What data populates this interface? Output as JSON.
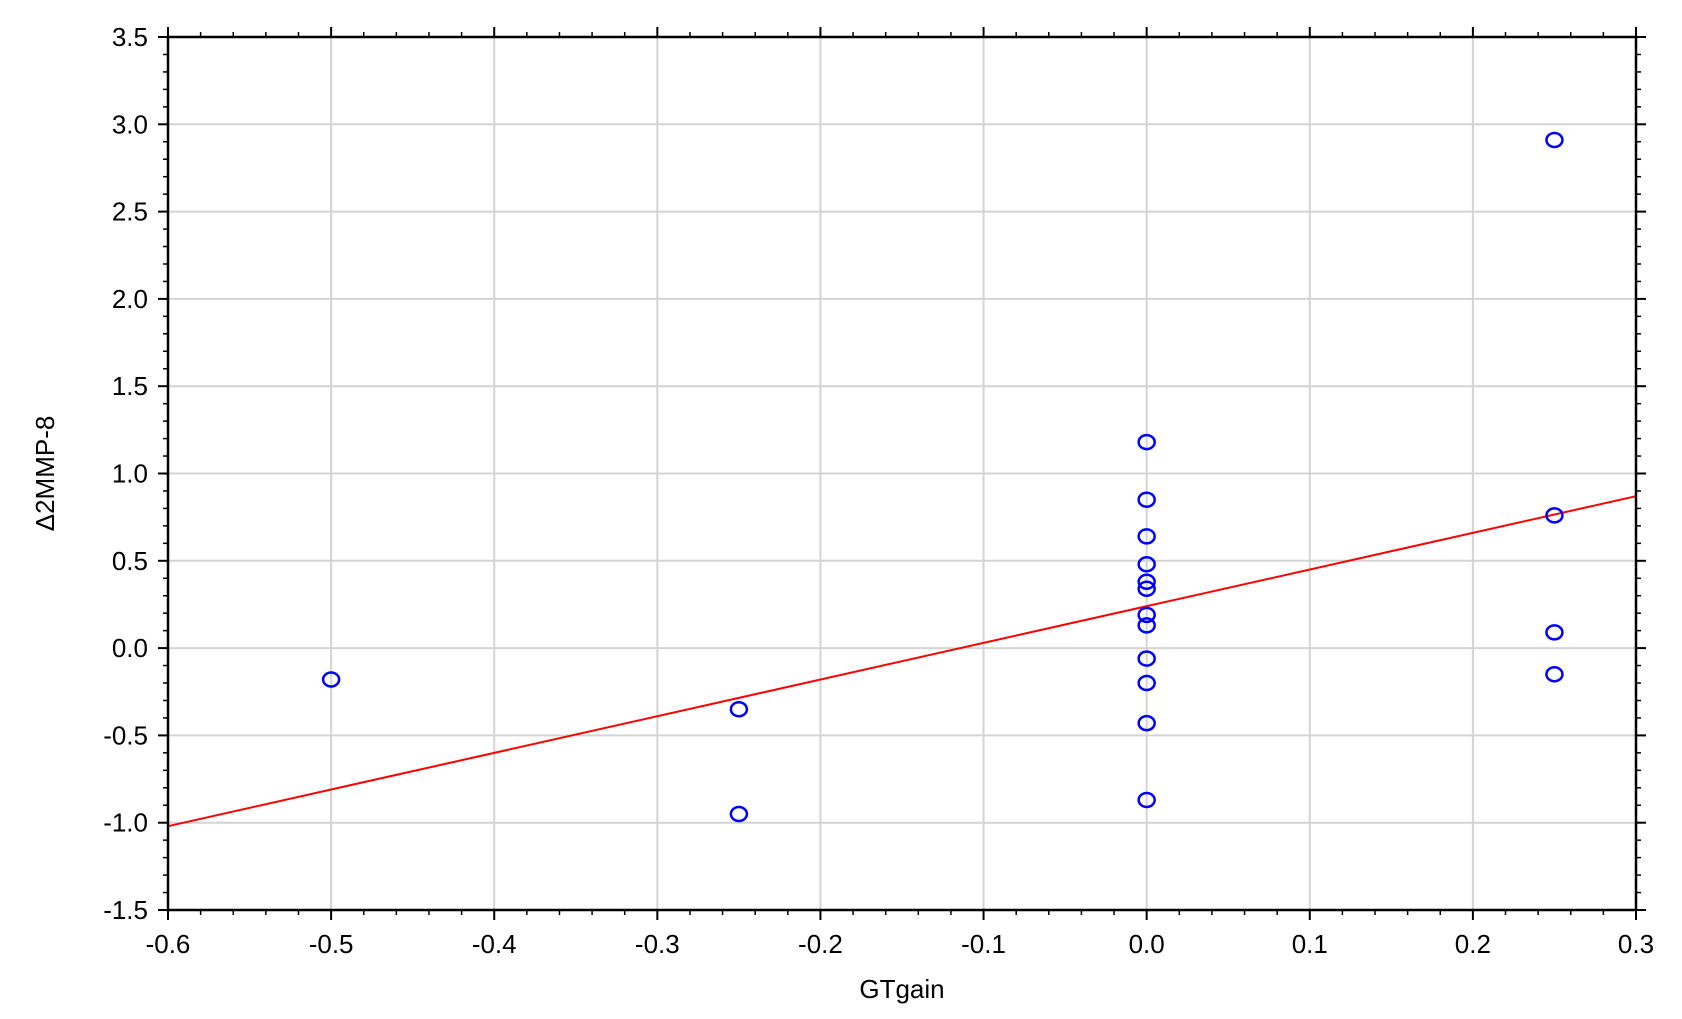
{
  "chart_data": {
    "type": "scatter",
    "title": "",
    "xlabel": "GTgain",
    "ylabel": "Δ2MMP-8",
    "xlim": [
      -0.6,
      0.3
    ],
    "ylim": [
      -1.5,
      3.5
    ],
    "x_ticks": [
      -0.6,
      -0.5,
      -0.4,
      -0.3,
      -0.2,
      -0.1,
      0.0,
      0.1,
      0.2,
      0.3
    ],
    "x_tick_labels": [
      "-0.6",
      "-0.5",
      "-0.4",
      "-0.3",
      "-0.2",
      "-0.1",
      "0.0",
      "0.1",
      "0.2",
      "0.3"
    ],
    "y_ticks": [
      -1.5,
      -1.0,
      -0.5,
      0.0,
      0.5,
      1.0,
      1.5,
      2.0,
      2.5,
      3.0,
      3.5
    ],
    "y_tick_labels": [
      "-1.5",
      "-1.0",
      "-0.5",
      "0.0",
      "0.5",
      "1.0",
      "1.5",
      "2.0",
      "2.5",
      "3.0",
      "3.5"
    ],
    "grid": true,
    "colors": {
      "points": "#0000ff",
      "fit_line": "#ff0000",
      "grid": "#d4d4d4",
      "axes": "#000000"
    },
    "points": [
      {
        "x": -0.5,
        "y": -0.18
      },
      {
        "x": -0.25,
        "y": -0.35
      },
      {
        "x": -0.25,
        "y": -0.95
      },
      {
        "x": 0.0,
        "y": 1.18
      },
      {
        "x": 0.0,
        "y": 0.85
      },
      {
        "x": 0.0,
        "y": 0.64
      },
      {
        "x": 0.0,
        "y": 0.48
      },
      {
        "x": 0.0,
        "y": 0.38
      },
      {
        "x": 0.0,
        "y": 0.34
      },
      {
        "x": 0.0,
        "y": 0.19
      },
      {
        "x": 0.0,
        "y": 0.13
      },
      {
        "x": 0.0,
        "y": -0.06
      },
      {
        "x": 0.0,
        "y": -0.2
      },
      {
        "x": 0.0,
        "y": -0.43
      },
      {
        "x": 0.0,
        "y": -0.87
      },
      {
        "x": 0.25,
        "y": 2.91
      },
      {
        "x": 0.25,
        "y": 0.76
      },
      {
        "x": 0.25,
        "y": 0.09
      },
      {
        "x": 0.25,
        "y": -0.15
      }
    ],
    "fit_line": {
      "x": [
        -0.6,
        0.3
      ],
      "y": [
        -1.02,
        0.87
      ]
    }
  }
}
